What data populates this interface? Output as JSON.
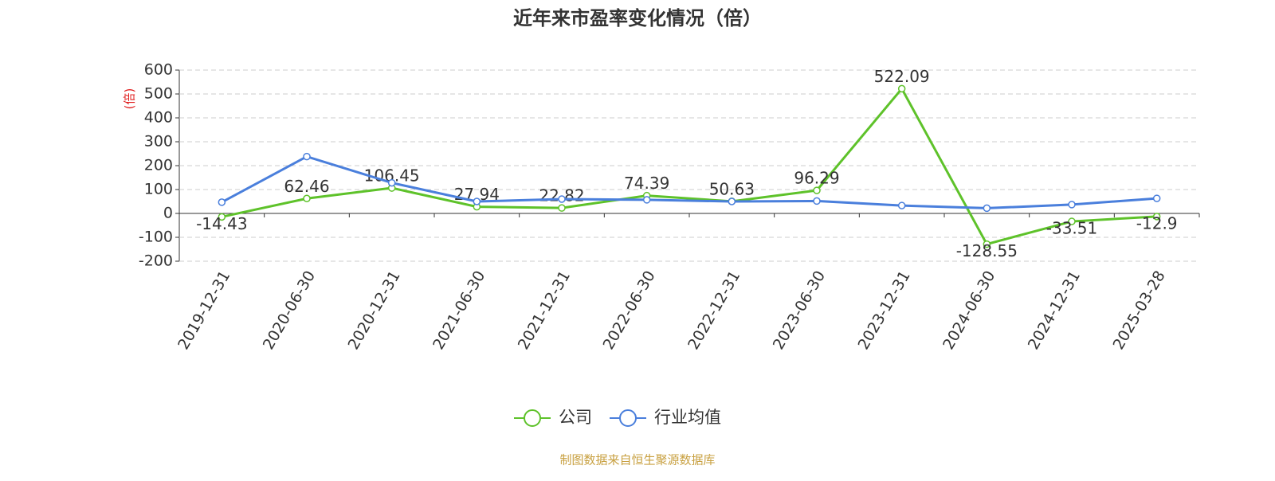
{
  "chart_data": {
    "type": "line",
    "title": "近年来市盈率变化情况（倍）",
    "y_label": "(倍)",
    "categories": [
      "2019-12-31",
      "2020-06-30",
      "2020-12-31",
      "2021-06-30",
      "2021-12-31",
      "2022-06-30",
      "2022-12-31",
      "2023-06-30",
      "2023-12-31",
      "2024-06-30",
      "2024-12-31",
      "2025-03-28"
    ],
    "series": [
      {
        "name": "公司",
        "color": "#5ec22a",
        "values": [
          -14.43,
          62.46,
          106.45,
          27.94,
          22.82,
          74.39,
          50.63,
          96.29,
          522.09,
          -128.55,
          -33.51,
          -12.9
        ]
      },
      {
        "name": "行业均值",
        "color": "#4a7fdc",
        "values": [
          47,
          238,
          128,
          50,
          60,
          57,
          50,
          52,
          33,
          22,
          37,
          63
        ]
      }
    ],
    "ylim": [
      -200,
      600
    ],
    "yticks": [
      -200,
      -100,
      0,
      100,
      200,
      300,
      400,
      500,
      600
    ],
    "grid": true,
    "footnote": "制图数据来自恒生聚源数据库"
  }
}
